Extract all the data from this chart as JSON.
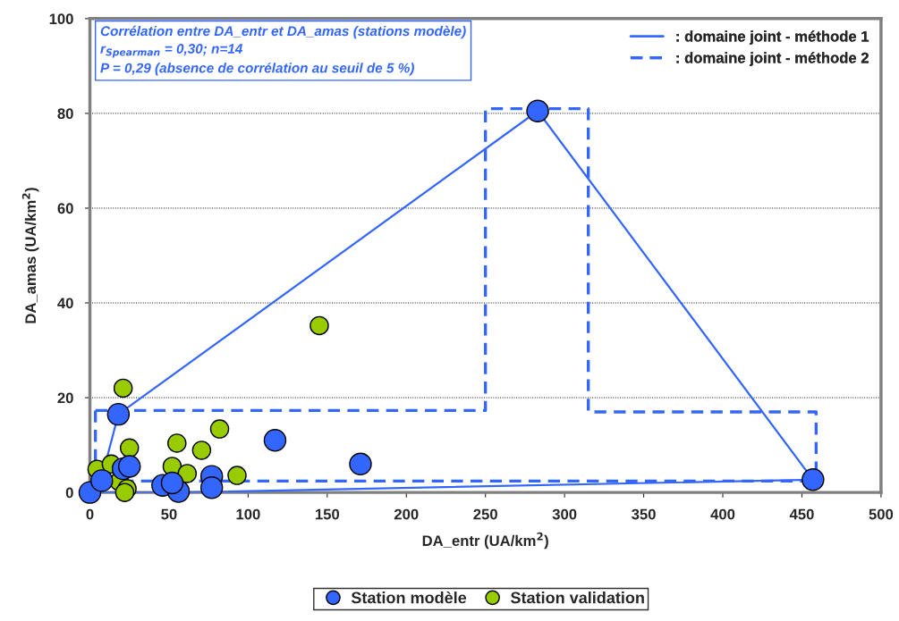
{
  "chart_data": {
    "type": "scatter",
    "xlabel": "DA_entr (UA/km$^{2}$)",
    "ylabel": "DA_amas (UA/km$^{2}$)",
    "annotations": [
      "Corrélation entre DA_entr et DA_amas (stations modèle)",
      "r$_{Spearman}$ = 0,30; n=14",
      "P = 0,29 (absence de corrélation au seuil de 5 %)"
    ],
    "xlim": [
      0,
      500
    ],
    "xticks": [
      0,
      50,
      100,
      150,
      200,
      250,
      300,
      350,
      400,
      450,
      500
    ],
    "ylim": [
      0,
      100
    ],
    "yticks": [
      0,
      20,
      40,
      60,
      80,
      100
    ],
    "grid": "y",
    "legend": "bottom",
    "series": [
      {
        "name": ": domaine joint - méthode 1",
        "type": "line",
        "line_style": "solid",
        "marker": "none",
        "color": "#3366ff",
        "x": [
          0,
          7,
          18,
          283,
          457
        ],
        "values": [
          0,
          2.5,
          16.5,
          80.5,
          2.7
        ]
      },
      {
        "type": "line",
        "line_style": "solid",
        "marker": "none",
        "color": "#3366ff",
        "x": [
          0,
          56,
          457
        ],
        "values": [
          0,
          0,
          2.7
        ]
      },
      {
        "name": ": domaine joint - méthode 2",
        "type": "line",
        "line_style": "dashed",
        "marker": "none",
        "color": "#3366ff",
        "x": [
          3.5,
          250,
          250,
          315,
          315,
          459,
          459
        ],
        "values": [
          17.3,
          17.3,
          81,
          81,
          17,
          17,
          2.4
        ]
      },
      {
        "type": "line",
        "line_style": "dashed",
        "marker": "none",
        "color": "#3366ff",
        "x": [
          3.5,
          3.5,
          459
        ],
        "values": [
          17.3,
          2.4,
          2.4
        ]
      },
      {
        "name": "Station modèle",
        "marker": "circle",
        "color": "#3366ff",
        "x": [
          0,
          18,
          283,
          457,
          171,
          117,
          21,
          25,
          7.5,
          46,
          56,
          52,
          77,
          77
        ],
        "values": [
          0,
          16.5,
          80.5,
          2.7,
          6,
          11,
          5,
          5.5,
          2.5,
          1.5,
          0.2,
          2,
          3.4,
          1
        ]
      },
      {
        "name": "Station validation",
        "marker": "circle",
        "color": "#99cc00",
        "x": [
          21,
          145,
          82,
          55,
          70.6,
          25,
          52,
          61.5,
          93,
          4.5,
          13.5,
          18.5,
          23.5,
          22
        ],
        "values": [
          22,
          35.2,
          13.4,
          10.4,
          8.9,
          9.4,
          5.5,
          4,
          3.6,
          4.9,
          6,
          2.3,
          0.8,
          0
        ]
      }
    ]
  }
}
